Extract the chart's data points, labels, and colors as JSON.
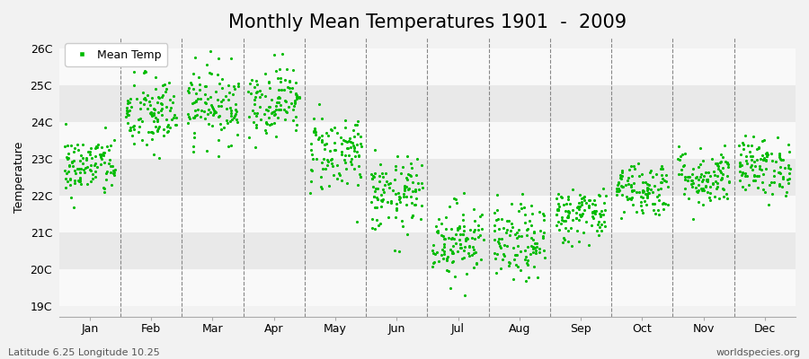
{
  "title": "Monthly Mean Temperatures 1901  -  2009",
  "ylabel": "Temperature",
  "xlabel_labels": [
    "Jan",
    "Feb",
    "Mar",
    "Apr",
    "May",
    "Jun",
    "Jul",
    "Aug",
    "Sep",
    "Oct",
    "Nov",
    "Dec"
  ],
  "ytick_labels": [
    "19C",
    "20C",
    "21C",
    "22C",
    "23C",
    "24C",
    "25C",
    "26C"
  ],
  "ytick_values": [
    19,
    20,
    21,
    22,
    23,
    24,
    25,
    26
  ],
  "ylim": [
    18.7,
    26.3
  ],
  "month_means": [
    22.8,
    24.2,
    24.5,
    24.6,
    23.2,
    22.0,
    20.8,
    20.7,
    21.5,
    22.2,
    22.5,
    22.8
  ],
  "month_stds": [
    0.42,
    0.55,
    0.52,
    0.48,
    0.55,
    0.52,
    0.52,
    0.52,
    0.38,
    0.38,
    0.4,
    0.4
  ],
  "n_years": 109,
  "seed": 42,
  "dot_color": "#00bb00",
  "dot_size": 5,
  "legend_label": "Mean Temp",
  "bg_color": "#f2f2f2",
  "band_colors": [
    "#f9f9f9",
    "#e9e9e9"
  ],
  "footer_left": "Latitude 6.25 Longitude 10.25",
  "footer_right": "worldspecies.org",
  "title_fontsize": 15,
  "axis_fontsize": 9,
  "footer_fontsize": 8
}
